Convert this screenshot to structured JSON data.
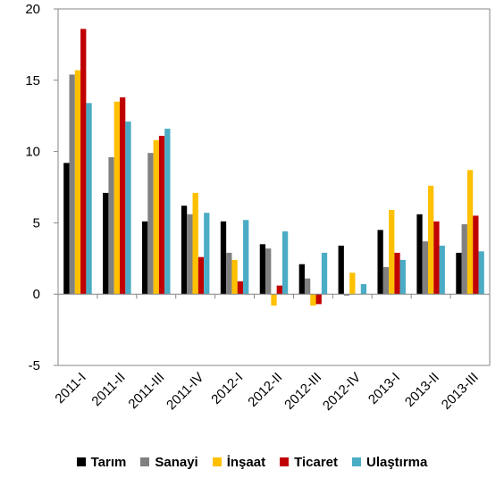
{
  "chart_data": {
    "type": "bar",
    "categories": [
      "2011-I",
      "2011-II",
      "2011-III",
      "2011-IV",
      "2012-I",
      "2012-II",
      "2012-III",
      "2012-IV",
      "2013-I",
      "2013-II",
      "2013-III"
    ],
    "series": [
      {
        "name": "Tarım",
        "color": "#000000",
        "values": [
          9.2,
          7.1,
          5.1,
          6.2,
          5.1,
          3.5,
          2.1,
          3.4,
          4.5,
          5.6,
          2.9
        ]
      },
      {
        "name": "Sanayi",
        "color": "#808080",
        "values": [
          15.4,
          9.6,
          9.9,
          5.6,
          2.9,
          3.2,
          1.1,
          -0.1,
          1.9,
          3.7,
          4.9
        ]
      },
      {
        "name": "İnşaat",
        "color": "#FFC000",
        "values": [
          15.7,
          13.5,
          10.8,
          7.1,
          2.4,
          -0.8,
          -0.8,
          1.5,
          5.9,
          7.6,
          8.7
        ]
      },
      {
        "name": "Ticaret",
        "color": "#C00000",
        "values": [
          18.6,
          13.8,
          11.1,
          2.6,
          0.9,
          0.6,
          -0.7,
          0.0,
          2.9,
          5.1,
          5.5
        ]
      },
      {
        "name": "Ulaştırma",
        "color": "#4BACC6",
        "values": [
          13.4,
          12.1,
          11.6,
          5.7,
          5.2,
          4.4,
          2.9,
          0.7,
          2.4,
          3.4,
          3.0
        ]
      }
    ],
    "yticks": [
      20,
      15,
      10,
      5,
      0,
      -5
    ],
    "ylim": [
      -5,
      20
    ],
    "grid": false,
    "legend_position": "bottom"
  }
}
